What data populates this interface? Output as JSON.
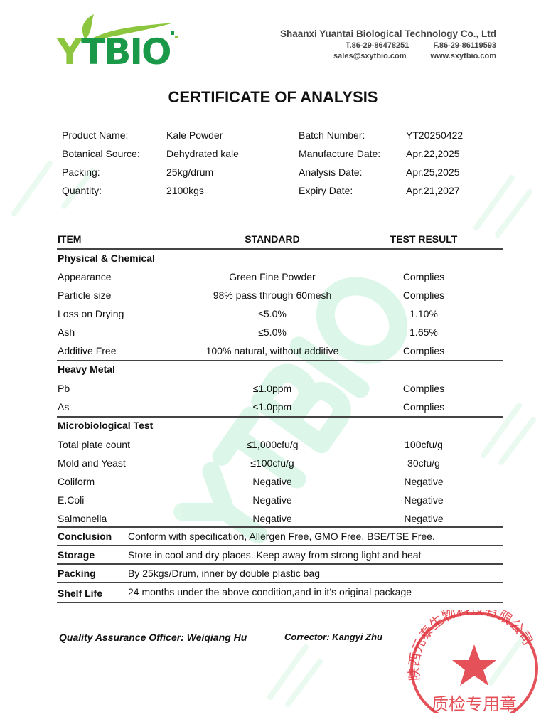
{
  "logo": {
    "text": "YTBIO",
    "brand_color": "#1a9a48",
    "leaf_color": "#8cc63f"
  },
  "company": {
    "name": "Shaanxi Yuantai Biological Technology Co., Ltd",
    "tel": "T.86-29-86478251",
    "fax": "F.86-29-86119593",
    "email": "sales@sxytbio.com",
    "website": "www.sxytbio.com"
  },
  "title": "CERTIFICATE OF ANALYSIS",
  "info": {
    "left": [
      {
        "label": "Product Name:",
        "value": "Kale Powder"
      },
      {
        "label": "Botanical Source:",
        "value": "Dehydrated kale"
      },
      {
        "label": "Packing:",
        "value": "25kg/drum"
      },
      {
        "label": "Quantity:",
        "value": "2100kgs"
      }
    ],
    "right": [
      {
        "label": "Batch Number:",
        "value": "YT20250422"
      },
      {
        "label": "Manufacture Date:",
        "value": "Apr.22,2025"
      },
      {
        "label": "Analysis Date:",
        "value": "Apr.25,2025"
      },
      {
        "label": "Expiry Date:",
        "value": "Apr.21,2027"
      }
    ]
  },
  "table": {
    "headers": [
      "ITEM",
      "STANDARD",
      "TEST RESULT"
    ],
    "rows": [
      {
        "section": "Physical & Chemical"
      },
      {
        "item": "Appearance",
        "standard": "Green Fine Powder",
        "result": "Complies"
      },
      {
        "item": "Particle size",
        "standard": "98% pass through 60mesh",
        "result": "Complies"
      },
      {
        "item": "Loss on Drying",
        "standard": "≤5.0%",
        "result": "1.10%"
      },
      {
        "item": "Ash",
        "standard": "≤5.0%",
        "result": "1.65%"
      },
      {
        "item": "Additive Free",
        "standard": "100% natural, without additive",
        "result": "Complies"
      },
      {
        "section": "Heavy Metal"
      },
      {
        "item": "Pb",
        "standard": "≤1.0ppm",
        "result": "Complies"
      },
      {
        "item": "As",
        "standard": "≤1.0ppm",
        "result": "Complies"
      },
      {
        "section": "Microbiological Test"
      },
      {
        "item": "Total plate count",
        "standard": "≤1,000cfu/g",
        "result": "100cfu/g"
      },
      {
        "item": "Mold and Yeast",
        "standard": "≤100cfu/g",
        "result": "30cfu/g"
      },
      {
        "item": "Coliform",
        "standard": "Negative",
        "result": "Negative"
      },
      {
        "item": "E.Coli",
        "standard": "Negative",
        "result": "Negative"
      },
      {
        "item": "Salmonella",
        "standard": "Negative",
        "result": "Negative"
      }
    ]
  },
  "footer_rows": [
    {
      "label": "Conclusion",
      "text": "Conform with specification, Allergen Free, GMO Free, BSE/TSE Free."
    },
    {
      "label": "Storage",
      "text": "Store in cool and dry places. Keep away from strong light and heat"
    },
    {
      "label": "Packing",
      "text": "By 25kgs/Drum, inner by double plastic bag"
    },
    {
      "label": "Shelf Life",
      "text": "24 months under the above condition,and in it’s original package"
    }
  ],
  "signatures": {
    "qa": "Quality Assurance Officer: Weiqiang Hu",
    "corrector": "Corrector: Kangyi Zhu"
  },
  "stamp": {
    "text_top": "陕西元泰生物科技有限公司",
    "text_bottom": "质检专用章",
    "color": "#e0323c"
  }
}
